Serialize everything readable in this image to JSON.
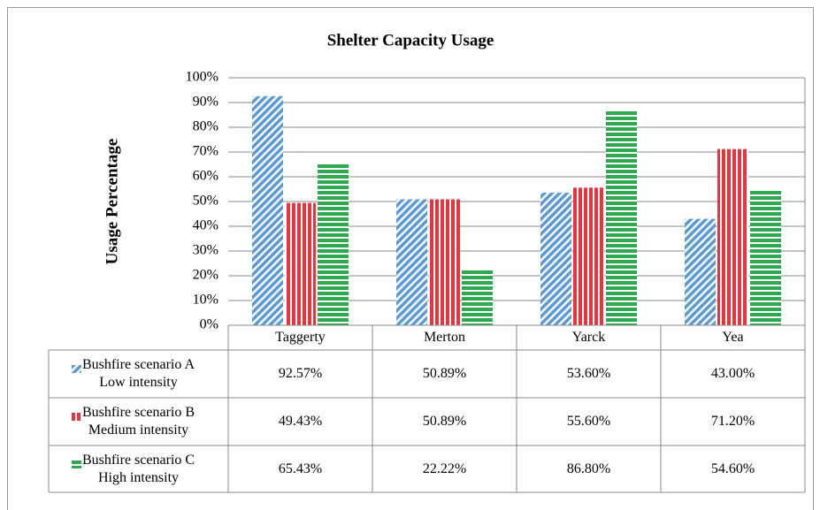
{
  "chart_data": {
    "type": "bar",
    "title": "Shelter Capacity Usage",
    "y_label": "Usage Percentage",
    "categories": [
      "Taggerty",
      "Merton",
      "Yarck",
      "Yea"
    ],
    "series": [
      {
        "name": "Bushfire scenario A\nLow intensity",
        "color": "#5b9bd5",
        "pattern": "diagonal",
        "values": [
          92.57,
          50.89,
          53.6,
          43.0
        ],
        "value_labels": [
          "92.57%",
          "50.89%",
          "53.60%",
          "43.00%"
        ]
      },
      {
        "name": "Bushfire scenario B\nMedium intensity",
        "color": "#e8343c",
        "pattern": "vertical",
        "values": [
          49.43,
          50.89,
          55.6,
          71.2
        ],
        "value_labels": [
          "49.43%",
          "50.89%",
          "55.60%",
          "71.20%"
        ]
      },
      {
        "name": "Bushfire scenario C\nHigh intensity",
        "color": "#2ea84f",
        "pattern": "horizontal",
        "values": [
          65.43,
          22.22,
          86.8,
          54.6
        ],
        "value_labels": [
          "65.43%",
          "22.22%",
          "86.80%",
          "54.60%"
        ]
      }
    ],
    "ylim": [
      0,
      100
    ],
    "yticks": [
      {
        "value": 0,
        "label": "0%"
      },
      {
        "value": 10,
        "label": "10%"
      },
      {
        "value": 20,
        "label": "20%"
      },
      {
        "value": 30,
        "label": "30%"
      },
      {
        "value": 40,
        "label": "40%"
      },
      {
        "value": 50,
        "label": "50%"
      },
      {
        "value": 60,
        "label": "60%"
      },
      {
        "value": 70,
        "label": "70%"
      },
      {
        "value": 80,
        "label": "80%"
      },
      {
        "value": 90,
        "label": "90%"
      },
      {
        "value": 100,
        "label": "100%"
      }
    ],
    "grid": true
  }
}
